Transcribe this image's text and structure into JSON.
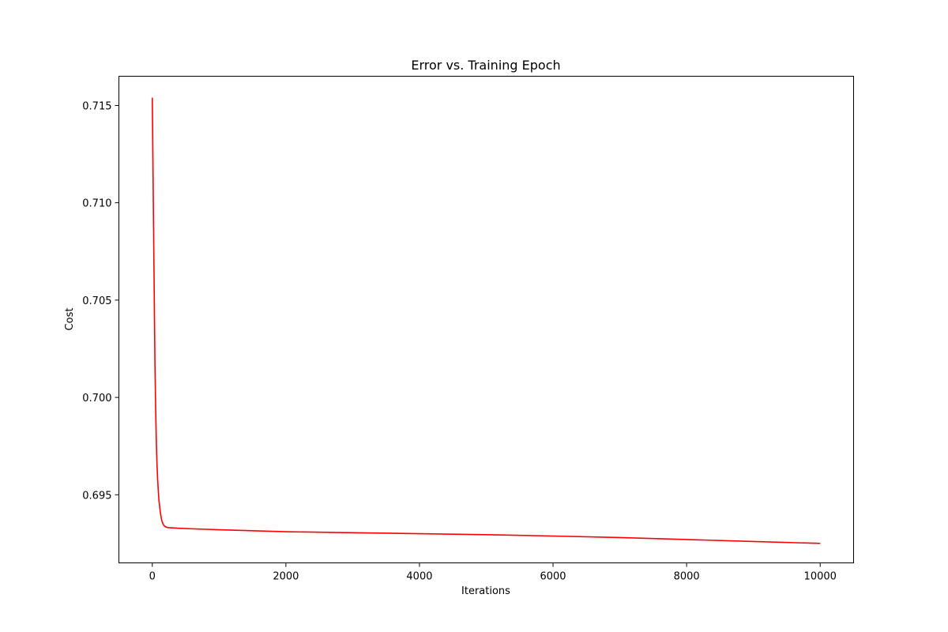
{
  "chart_data": {
    "type": "line",
    "title": "Error vs. Training Epoch",
    "xlabel": "Iterations",
    "ylabel": "Cost",
    "xlim": [
      -500,
      10500
    ],
    "ylim": [
      0.6915,
      0.7165
    ],
    "xticks": [
      0,
      2000,
      4000,
      6000,
      8000,
      10000
    ],
    "xtick_labels": [
      "0",
      "2000",
      "4000",
      "6000",
      "8000",
      "10000"
    ],
    "yticks": [
      0.695,
      0.7,
      0.705,
      0.71,
      0.715
    ],
    "ytick_labels": [
      "0.695",
      "0.700",
      "0.705",
      "0.710",
      "0.715"
    ],
    "grid": false,
    "legend": "none",
    "series": [
      {
        "color": "#ff0000",
        "x": [
          0,
          10,
          20,
          30,
          40,
          50,
          60,
          70,
          80,
          90,
          100,
          120,
          140,
          160,
          180,
          200,
          225,
          250,
          300,
          400,
          600,
          1000,
          2000,
          3000,
          4000,
          5000,
          6000,
          7000,
          8000,
          9000,
          10000
        ],
        "y": [
          0.7154,
          0.712,
          0.7085,
          0.705,
          0.7017,
          0.6995,
          0.6978,
          0.6966,
          0.6958,
          0.6952,
          0.6947,
          0.6941,
          0.6937,
          0.6935,
          0.6934,
          0.69335,
          0.69332,
          0.69331,
          0.6933,
          0.69328,
          0.69325,
          0.6932,
          0.6931,
          0.69305,
          0.693,
          0.69295,
          0.69288,
          0.6928,
          0.6927,
          0.6926,
          0.6925
        ]
      }
    ]
  }
}
